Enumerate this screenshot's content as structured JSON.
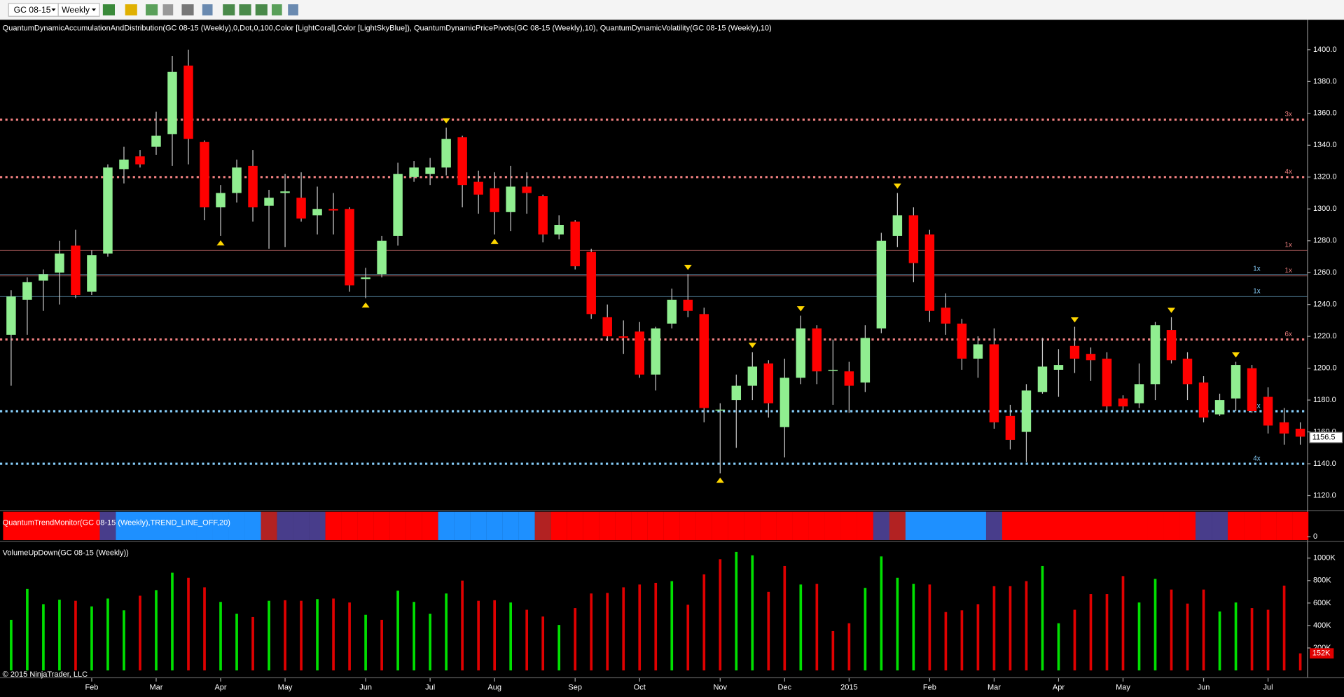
{
  "chart_data": {
    "type": "candlestick",
    "toolbar": {
      "instrument": "GC 08-15",
      "interval": "Weekly"
    },
    "indicator_label": "QuantumDynamicAccumulationAndDistribution(GC 08-15 (Weekly),0,Dot,0,100,Color [LightCoral],Color [LightSkyBlue]), QuantumDynamicPricePivots(GC 08-15 (Weekly),10), QuantumDynamicVolatility(GC 08-15 (Weekly),10)",
    "up_color": "#90ee90",
    "down_color": "#ff0000",
    "wick_color": "#c8c8c8",
    "open": [
      1221,
      1243,
      1255,
      1260,
      1277,
      1248,
      1272,
      1325,
      1333,
      1339,
      1347,
      1390,
      1342,
      1301,
      1310,
      1327,
      1302,
      1310,
      1307,
      1296,
      1300,
      1300,
      1256,
      1259,
      1283,
      1320,
      1322,
      1326,
      1345,
      1317,
      1313,
      1298,
      1314,
      1308,
      1284,
      1292,
      1273,
      1232,
      1220,
      1223,
      1196,
      1228,
      1243,
      1234,
      1174,
      1180,
      1189,
      1203,
      1163,
      1194,
      1225,
      1199,
      1198,
      1191,
      1225,
      1283,
      1296,
      1284,
      1238,
      1228,
      1206,
      1215,
      1170,
      1160,
      1185,
      1199,
      1214,
      1209,
      1206,
      1181,
      1178,
      1190,
      1224,
      1206,
      1191,
      1171,
      1181,
      1200,
      1182,
      1166,
      1162
    ],
    "high": [
      1249,
      1257,
      1262,
      1280,
      1287,
      1274,
      1328,
      1339,
      1337,
      1361,
      1396,
      1400,
      1343,
      1315,
      1331,
      1337,
      1312,
      1322,
      1323,
      1314,
      1310,
      1301,
      1263,
      1283,
      1329,
      1330,
      1332,
      1351,
      1346,
      1324,
      1323,
      1327,
      1323,
      1309,
      1296,
      1293,
      1275,
      1240,
      1230,
      1229,
      1226,
      1250,
      1259,
      1238,
      1178,
      1196,
      1210,
      1205,
      1206,
      1233,
      1227,
      1218,
      1204,
      1227,
      1285,
      1310,
      1301,
      1287,
      1247,
      1231,
      1220,
      1225,
      1177,
      1190,
      1219,
      1212,
      1226,
      1213,
      1210,
      1183,
      1203,
      1229,
      1232,
      1210,
      1195,
      1184,
      1204,
      1202,
      1188,
      1175,
      1166
    ],
    "low": [
      1189,
      1221,
      1236,
      1240,
      1244,
      1246,
      1270,
      1316,
      1326,
      1334,
      1327,
      1328,
      1293,
      1283,
      1304,
      1292,
      1275,
      1276,
      1292,
      1284,
      1284,
      1248,
      1244,
      1257,
      1277,
      1317,
      1315,
      1321,
      1301,
      1297,
      1284,
      1286,
      1297,
      1279,
      1281,
      1262,
      1231,
      1217,
      1209,
      1194,
      1186,
      1225,
      1232,
      1166,
      1134,
      1150,
      1180,
      1169,
      1144,
      1190,
      1190,
      1177,
      1172,
      1185,
      1222,
      1276,
      1254,
      1229,
      1221,
      1199,
      1194,
      1162,
      1149,
      1141,
      1184,
      1182,
      1197,
      1192,
      1173,
      1173,
      1175,
      1180,
      1203,
      1180,
      1166,
      1170,
      1173,
      1172,
      1159,
      1152,
      1152
    ],
    "close": [
      1245,
      1254,
      1259,
      1272,
      1246,
      1271,
      1326,
      1331,
      1328,
      1346,
      1386,
      1344,
      1301,
      1310,
      1326,
      1301,
      1307,
      1311,
      1294,
      1300,
      1299,
      1252,
      1257,
      1280,
      1322,
      1326,
      1326,
      1344,
      1315,
      1309,
      1298,
      1314,
      1310,
      1284,
      1290,
      1264,
      1234,
      1220,
      1219,
      1196,
      1225,
      1243,
      1236,
      1175,
      1174,
      1189,
      1201,
      1178,
      1194,
      1225,
      1198,
      1199,
      1189,
      1219,
      1280,
      1296,
      1266,
      1236,
      1228,
      1206,
      1215,
      1166,
      1155,
      1186,
      1201,
      1202,
      1206,
      1205,
      1176,
      1176,
      1190,
      1227,
      1205,
      1190,
      1169,
      1180,
      1202,
      1173,
      1164,
      1159,
      1157
    ],
    "last_price": 1156.5,
    "ylim": [
      1110.9,
      1418.8
    ],
    "yticks": [
      {
        "value": 1120,
        "label": "1120.0"
      },
      {
        "value": 1140,
        "label": "1140.0"
      },
      {
        "value": 1160,
        "label": "1160.0"
      },
      {
        "value": 1180,
        "label": "1180.0"
      },
      {
        "value": 1200,
        "label": "1200.0"
      },
      {
        "value": 1220,
        "label": "1220.0"
      },
      {
        "value": 1240,
        "label": "1240.0"
      },
      {
        "value": 1260,
        "label": "1260.0"
      },
      {
        "value": 1280,
        "label": "1280.0"
      },
      {
        "value": 1300,
        "label": "1300.0"
      },
      {
        "value": 1320,
        "label": "1320.0"
      },
      {
        "value": 1340,
        "label": "1340.0"
      },
      {
        "value": 1360,
        "label": "1360.0"
      },
      {
        "value": 1380,
        "label": "1380.0"
      },
      {
        "value": 1400,
        "label": "1400.0"
      }
    ],
    "pivot_levels": [
      {
        "value": 1356,
        "label": "3x",
        "color": "#f08080",
        "dotted": true
      },
      {
        "value": 1320,
        "label": "4x",
        "color": "#f08080",
        "dotted": true
      },
      {
        "value": 1274,
        "label": "1x",
        "color": "#f08080",
        "dotted": false
      },
      {
        "value": 1258,
        "label": "1x",
        "color": "#f08080",
        "dotted": false
      },
      {
        "value": 1259,
        "label": "1x",
        "color": "#87cefa",
        "dotted": false
      },
      {
        "value": 1245,
        "label": "1x",
        "color": "#87cefa",
        "dotted": false
      },
      {
        "value": 1218,
        "label": "6x",
        "color": "#f08080",
        "dotted": true
      },
      {
        "value": 1173,
        "label": "1x",
        "color": "#87cefa",
        "dotted": true
      },
      {
        "value": 1140,
        "label": "4x",
        "color": "#87cefa",
        "dotted": true
      }
    ],
    "pivot_highs": [
      27,
      42,
      46,
      49,
      55,
      66,
      72,
      76
    ],
    "pivot_lows": [
      13,
      22,
      30,
      44
    ],
    "marker_color": "#ffd700",
    "xticks": [
      {
        "value": 5,
        "label": "Feb"
      },
      {
        "value": 9,
        "label": "Mar"
      },
      {
        "value": 13,
        "label": "Apr"
      },
      {
        "value": 17,
        "label": "May"
      },
      {
        "value": 22,
        "label": "Jun"
      },
      {
        "value": 26,
        "label": "Jul"
      },
      {
        "value": 30,
        "label": "Aug"
      },
      {
        "value": 35,
        "label": "Sep"
      },
      {
        "value": 39,
        "label": "Oct"
      },
      {
        "value": 44,
        "label": "Nov"
      },
      {
        "value": 48,
        "label": "Dec"
      },
      {
        "value": 52,
        "label": "2015"
      },
      {
        "value": 57,
        "label": "Feb"
      },
      {
        "value": 61,
        "label": "Mar"
      },
      {
        "value": 65,
        "label": "Apr"
      },
      {
        "value": 69,
        "label": "May"
      },
      {
        "value": 74,
        "label": "Jun"
      },
      {
        "value": 78,
        "label": "Jul"
      }
    ],
    "trend": {
      "label": "QuantumTrendMonitor(GC 08-15 (Weekly),TREND_LINE_OFF,20)",
      "ytick": 0,
      "palette": {
        "R": "#ff0000",
        "B": "#1e90ff",
        "P": "#483d8b",
        "D": "#b22222"
      },
      "codes": [
        "R",
        "R",
        "R",
        "R",
        "R",
        "R",
        "P",
        "B",
        "B",
        "B",
        "B",
        "B",
        "B",
        "B",
        "B",
        "B",
        "D",
        "P",
        "P",
        "P",
        "R",
        "R",
        "R",
        "R",
        "R",
        "R",
        "R",
        "B",
        "B",
        "B",
        "B",
        "B",
        "B",
        "D",
        "R",
        "R",
        "R",
        "R",
        "R",
        "R",
        "R",
        "R",
        "R",
        "R",
        "R",
        "R",
        "R",
        "R",
        "R",
        "R",
        "R",
        "R",
        "R",
        "R",
        "P",
        "D",
        "B",
        "B",
        "B",
        "B",
        "B",
        "P",
        "R",
        "R",
        "R",
        "R",
        "R",
        "R",
        "R",
        "R",
        "R",
        "R",
        "R",
        "R",
        "P",
        "P",
        "R",
        "R",
        "R",
        "R",
        "R"
      ]
    },
    "volume": {
      "label": "VolumeUpDown(GC 08-15 (Weekly))",
      "up_color": "#00e000",
      "down_color": "#e00000",
      "values": [
        450000,
        725000,
        590000,
        630000,
        620000,
        570000,
        640000,
        535000,
        665000,
        715000,
        870000,
        825000,
        740000,
        610000,
        505000,
        475000,
        620000,
        625000,
        620000,
        635000,
        640000,
        605000,
        495000,
        450000,
        710000,
        610000,
        505000,
        685000,
        800000,
        620000,
        625000,
        605000,
        540000,
        480000,
        405000,
        555000,
        685000,
        690000,
        740000,
        765000,
        780000,
        795000,
        585000,
        855000,
        990000,
        1055000,
        1025000,
        700000,
        930000,
        765000,
        770000,
        350000,
        420000,
        735000,
        1015000,
        825000,
        770000,
        765000,
        520000,
        535000,
        590000,
        750000,
        750000,
        795000,
        930000,
        420000,
        540000,
        680000,
        680000,
        840000,
        605000,
        815000,
        720000,
        595000,
        720000,
        525000,
        605000,
        555000,
        540000,
        755000,
        152000
      ],
      "up": [
        true,
        true,
        true,
        true,
        false,
        true,
        true,
        true,
        false,
        true,
        true,
        false,
        false,
        true,
        true,
        false,
        true,
        false,
        false,
        true,
        false,
        false,
        true,
        false,
        true,
        true,
        true,
        true,
        false,
        false,
        false,
        true,
        false,
        false,
        true,
        false,
        false,
        false,
        false,
        false,
        false,
        true,
        false,
        false,
        false,
        true,
        true,
        false,
        false,
        true,
        false,
        false,
        false,
        true,
        true,
        true,
        true,
        false,
        false,
        false,
        false,
        false,
        false,
        false,
        true,
        true,
        false,
        false,
        false,
        false,
        true,
        true,
        false,
        false,
        false,
        true,
        true,
        false,
        false,
        false,
        false
      ],
      "last_label": "152K",
      "ylim": [
        -61000,
        1145000
      ],
      "yticks": [
        {
          "value": 200000,
          "label": "200K"
        },
        {
          "value": 400000,
          "label": "400K"
        },
        {
          "value": 600000,
          "label": "600K"
        },
        {
          "value": 800000,
          "label": "800K"
        },
        {
          "value": 1000000,
          "label": "1000K"
        }
      ]
    },
    "copyright": "© 2015 NinjaTrader, LLC"
  }
}
